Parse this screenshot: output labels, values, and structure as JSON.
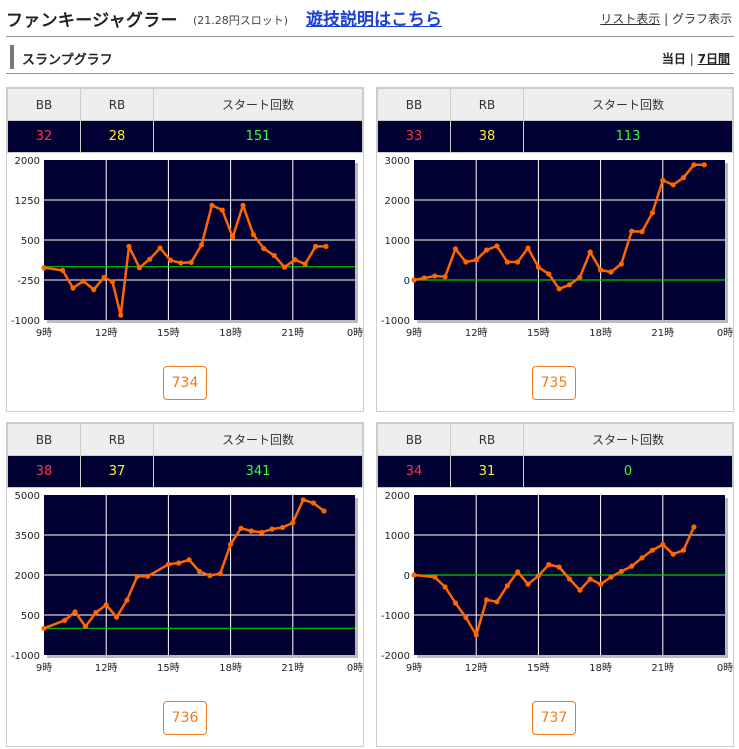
{
  "header": {
    "title": "ファンキージャグラー",
    "subtitle": "(21.28円スロット)",
    "explain_link": "遊技説明はこちら",
    "list_view": "リスト表示",
    "separator": "|",
    "graph_view": "グラフ表示"
  },
  "section": {
    "title": "スランプグラフ",
    "today": "当日",
    "separator": "|",
    "week": "7日間"
  },
  "table_headers": {
    "bb": "BB",
    "rb": "RB",
    "start": "スタート回数"
  },
  "colors": {
    "chart_bg": "#000033",
    "line": "#ff6600",
    "zero_line": "#00cc00",
    "bb": "#ff3344",
    "rb": "#ffee33",
    "start": "#33ff33",
    "accent": "#f07a1a"
  },
  "machines": [
    {
      "bb": "32",
      "rb": "28",
      "start": "151",
      "number": "734"
    },
    {
      "bb": "33",
      "rb": "38",
      "start": "113",
      "number": "735"
    },
    {
      "bb": "38",
      "rb": "37",
      "start": "341",
      "number": "736"
    },
    {
      "bb": "34",
      "rb": "31",
      "start": "0",
      "number": "737"
    }
  ],
  "chart_data": [
    {
      "type": "line",
      "title": "",
      "xlabel": "",
      "ylabel": "",
      "x_tick_labels": [
        "9時",
        "12時",
        "15時",
        "18時",
        "21時",
        "0時"
      ],
      "y_tick_labels": [
        "2000",
        "1250",
        "500",
        "-250",
        "-1000"
      ],
      "xlim": [
        9,
        24
      ],
      "ylim": [
        -1000,
        2000
      ],
      "grid": true,
      "x": [
        9,
        9.9,
        10.4,
        10.9,
        11.4,
        11.9,
        12.3,
        12.7,
        13.1,
        13.6,
        14.1,
        14.6,
        15.1,
        15.6,
        16.1,
        16.6,
        17.1,
        17.6,
        18.1,
        18.6,
        19.1,
        19.6,
        20.1,
        20.6,
        21.1,
        21.6,
        22.1,
        22.6
      ],
      "series": [
        {
          "values": [
            -20,
            -70,
            -400,
            -270,
            -430,
            -200,
            -280,
            -910,
            380,
            -20,
            140,
            350,
            120,
            70,
            80,
            410,
            1150,
            1060,
            550,
            1150,
            600,
            340,
            210,
            -10,
            130,
            50,
            380,
            380
          ]
        }
      ]
    },
    {
      "type": "line",
      "title": "",
      "xlabel": "",
      "ylabel": "",
      "x_tick_labels": [
        "9時",
        "12時",
        "15時",
        "18時",
        "21時",
        "0時"
      ],
      "y_tick_labels": [
        "3000",
        "2000",
        "1000",
        "0",
        "-1000"
      ],
      "xlim": [
        9,
        24
      ],
      "ylim": [
        -1000,
        3000
      ],
      "grid": true,
      "x": [
        9,
        9.5,
        10,
        10.5,
        11,
        11.5,
        12,
        12.5,
        13,
        13.5,
        14,
        14.5,
        15,
        15.5,
        16,
        16.5,
        17,
        17.5,
        18,
        18.5,
        19,
        19.5,
        20,
        20.5,
        21,
        21.5,
        22,
        22.5,
        23
      ],
      "series": [
        {
          "values": [
            0,
            50,
            100,
            80,
            780,
            450,
            500,
            750,
            850,
            450,
            450,
            800,
            320,
            150,
            -220,
            -120,
            70,
            700,
            250,
            200,
            400,
            1220,
            1210,
            1680,
            2490,
            2380,
            2560,
            2880,
            2880
          ]
        }
      ]
    },
    {
      "type": "line",
      "title": "",
      "xlabel": "",
      "ylabel": "",
      "x_tick_labels": [
        "9時",
        "12時",
        "15時",
        "18時",
        "21時",
        "0時"
      ],
      "y_tick_labels": [
        "5000",
        "3500",
        "2000",
        "500",
        "-1000"
      ],
      "xlim": [
        9,
        24
      ],
      "ylim": [
        -1000,
        5000
      ],
      "grid": true,
      "x": [
        9,
        10,
        10.5,
        11,
        11.5,
        12,
        12.5,
        13,
        13.5,
        14,
        15,
        15.5,
        16,
        16.5,
        17,
        17.5,
        18,
        18.5,
        19,
        19.5,
        20,
        20.5,
        21,
        21.5,
        22,
        22.5
      ],
      "series": [
        {
          "values": [
            0,
            300,
            620,
            70,
            590,
            880,
            420,
            1050,
            1950,
            1950,
            2400,
            2450,
            2570,
            2130,
            1980,
            2050,
            3150,
            3750,
            3650,
            3600,
            3720,
            3780,
            3960,
            4820,
            4700,
            4400
          ]
        }
      ]
    },
    {
      "type": "line",
      "title": "",
      "xlabel": "",
      "ylabel": "",
      "x_tick_labels": [
        "9時",
        "12時",
        "15時",
        "18時",
        "21時",
        "0時"
      ],
      "y_tick_labels": [
        "2000",
        "1000",
        "0",
        "-1000",
        "-2000"
      ],
      "xlim": [
        9,
        24
      ],
      "ylim": [
        -2000,
        2000
      ],
      "grid": true,
      "x": [
        9,
        10,
        10.5,
        11,
        11.5,
        12,
        12.5,
        13,
        13.5,
        14,
        14.5,
        15,
        15.5,
        16,
        16.5,
        17,
        17.5,
        18,
        18.5,
        19,
        19.5,
        20,
        20.5,
        21,
        21.5,
        22,
        22.5
      ],
      "series": [
        {
          "values": [
            0,
            -50,
            -300,
            -700,
            -1060,
            -1500,
            -620,
            -670,
            -270,
            80,
            -230,
            -20,
            260,
            200,
            -100,
            -380,
            -100,
            -230,
            -50,
            90,
            220,
            430,
            620,
            760,
            520,
            620,
            1200
          ]
        }
      ]
    }
  ]
}
